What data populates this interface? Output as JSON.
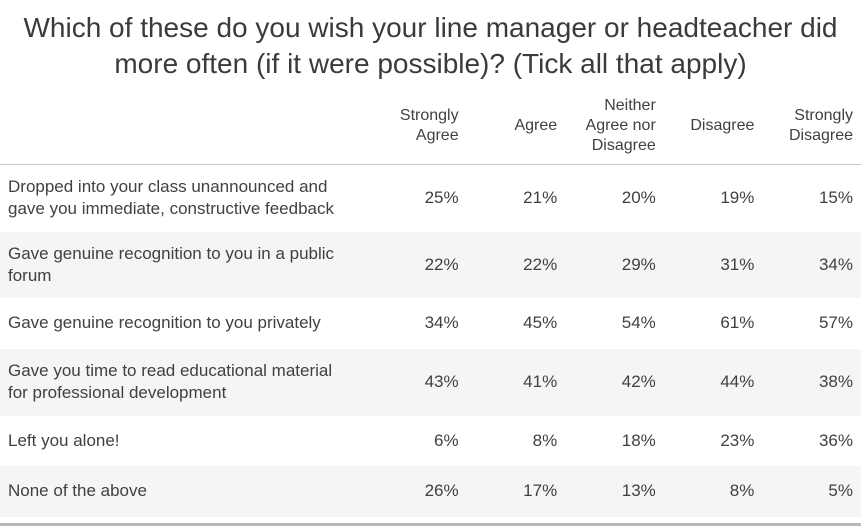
{
  "title": "Which of these do you wish your line manager or headteacher did more often (if it were possible)? (Tick all that apply)",
  "table": {
    "columns": [
      "Strongly Agree",
      "Agree",
      "Neither Agree nor Disagree",
      "Disagree",
      "Strongly Disagree"
    ],
    "rows": [
      {
        "label": "Dropped into your class unannounced and gave you immediate, constructive feedback",
        "values": [
          "25%",
          "21%",
          "20%",
          "19%",
          "15%"
        ]
      },
      {
        "label": "Gave genuine recognition to you in a public forum",
        "values": [
          "22%",
          "22%",
          "29%",
          "31%",
          "34%"
        ]
      },
      {
        "label": "Gave genuine recognition to you privately",
        "values": [
          "34%",
          "45%",
          "54%",
          "61%",
          "57%"
        ]
      },
      {
        "label": "Gave you time to read educational material for professional development",
        "values": [
          "43%",
          "41%",
          "42%",
          "44%",
          "38%"
        ]
      },
      {
        "label": "Left you alone!",
        "values": [
          "6%",
          "8%",
          "18%",
          "23%",
          "36%"
        ]
      },
      {
        "label": "None of the above",
        "values": [
          "26%",
          "17%",
          "13%",
          "8%",
          "5%"
        ]
      }
    ]
  },
  "colors": {
    "title_text": "#3b3b3b",
    "body_text": "#3f3f46",
    "row_alt_background": "#f5f5f3",
    "header_rule": "#cbcbca",
    "bottom_bar": "#b9b9b7",
    "page_background": "#ffffff"
  },
  "chart_data": {
    "type": "table",
    "title": "Which of these do you wish your line manager or headteacher did more often (if it were possible)? (Tick all that apply)",
    "categories": [
      "Strongly Agree",
      "Agree",
      "Neither Agree nor Disagree",
      "Disagree",
      "Strongly Disagree"
    ],
    "unit": "percent",
    "series": [
      {
        "name": "Dropped into your class unannounced and gave you immediate, constructive feedback",
        "values": [
          25,
          21,
          20,
          19,
          15
        ]
      },
      {
        "name": "Gave genuine recognition to you in a public forum",
        "values": [
          22,
          22,
          29,
          31,
          34
        ]
      },
      {
        "name": "Gave genuine recognition to you privately",
        "values": [
          34,
          45,
          54,
          61,
          57
        ]
      },
      {
        "name": "Gave you time to read educational material for professional development",
        "values": [
          43,
          41,
          42,
          44,
          38
        ]
      },
      {
        "name": "Left you alone!",
        "values": [
          6,
          8,
          18,
          23,
          36
        ]
      },
      {
        "name": "None of the above",
        "values": [
          26,
          17,
          13,
          8,
          5
        ]
      }
    ],
    "layout": {
      "grid": false,
      "legend": "none",
      "row_striping": true
    }
  }
}
